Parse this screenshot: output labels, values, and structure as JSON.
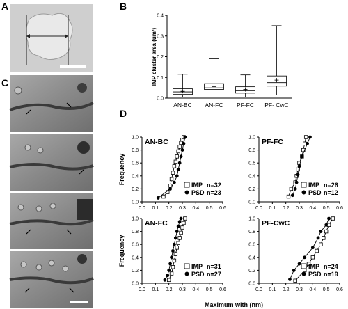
{
  "panels": {
    "A": {
      "letter": "A"
    },
    "B": {
      "letter": "B"
    },
    "C": {
      "letter": "C"
    },
    "D": {
      "letter": "D"
    }
  },
  "chart_data": [
    {
      "type": "box",
      "panel": "B",
      "ylabel": "IMP cluster area (um²)",
      "ylim": [
        0,
        0.4
      ],
      "yticks": [
        0.0,
        0.1,
        0.2,
        0.3,
        0.4
      ],
      "categories": [
        "AN-BC",
        "AN-FC",
        "PF-FC",
        "PF- CwC"
      ],
      "boxes": [
        {
          "min": 0.005,
          "q1": 0.018,
          "median": 0.03,
          "q3": 0.045,
          "max": 0.115,
          "mean": 0.033
        },
        {
          "min": 0.005,
          "q1": 0.042,
          "median": 0.05,
          "q3": 0.07,
          "max": 0.19,
          "mean": 0.055
        },
        {
          "min": 0.005,
          "q1": 0.024,
          "median": 0.036,
          "q3": 0.055,
          "max": 0.112,
          "mean": 0.042
        },
        {
          "min": 0.015,
          "q1": 0.058,
          "median": 0.075,
          "q3": 0.107,
          "max": 0.35,
          "mean": 0.087
        }
      ]
    },
    {
      "type": "line",
      "panel": "D",
      "xlabel": "Maximum with (nm)",
      "ylabel": "Frequency",
      "xlim": [
        0,
        0.6
      ],
      "ylim": [
        0,
        1.0
      ],
      "xticks": [
        "0.0",
        "0.1",
        "0.2",
        "0.3",
        "0.4",
        "0.5",
        "0.6"
      ],
      "yticks": [
        "0.0",
        "0.2",
        "0.4",
        "0.6",
        "0.8",
        "1.0"
      ],
      "subplots": [
        {
          "title": "AN-BC",
          "series": [
            {
              "name": "IMP",
              "n_label": "n=32",
              "marker": "open-square",
              "x": [
                0.16,
                0.19,
                0.21,
                0.22,
                0.23,
                0.24,
                0.25,
                0.26,
                0.27,
                0.28,
                0.29,
                0.3,
                0.31
              ],
              "y": [
                0.08,
                0.15,
                0.25,
                0.35,
                0.45,
                0.55,
                0.62,
                0.7,
                0.78,
                0.85,
                0.91,
                0.96,
                1.0
              ]
            },
            {
              "name": "PSD",
              "n_label": "n=23",
              "marker": "filled-circle",
              "x": [
                0.12,
                0.21,
                0.24,
                0.26,
                0.27,
                0.28,
                0.29,
                0.3,
                0.31,
                0.32
              ],
              "y": [
                0.06,
                0.2,
                0.3,
                0.4,
                0.5,
                0.6,
                0.7,
                0.8,
                0.9,
                1.0
              ]
            }
          ]
        },
        {
          "title": "PF-FC",
          "series": [
            {
              "name": "IMP",
              "n_label": "n=26",
              "marker": "open-square",
              "x": [
                0.22,
                0.24,
                0.27,
                0.28,
                0.29,
                0.3,
                0.32,
                0.33,
                0.34,
                0.35
              ],
              "y": [
                0.08,
                0.2,
                0.3,
                0.4,
                0.5,
                0.6,
                0.7,
                0.8,
                0.9,
                1.0
              ]
            },
            {
              "name": "PSD",
              "n_label": "n=12",
              "marker": "filled-circle",
              "x": [
                0.25,
                0.27,
                0.28,
                0.29,
                0.3,
                0.32,
                0.36,
                0.38
              ],
              "y": [
                0.1,
                0.2,
                0.3,
                0.42,
                0.55,
                0.7,
                0.9,
                1.0
              ]
            }
          ]
        },
        {
          "title": "AN-FC",
          "series": [
            {
              "name": "IMP",
              "n_label": "n=31",
              "marker": "open-square",
              "x": [
                0.2,
                0.22,
                0.23,
                0.24,
                0.25,
                0.26,
                0.27,
                0.28,
                0.29,
                0.3,
                0.31,
                0.32
              ],
              "y": [
                0.05,
                0.15,
                0.25,
                0.35,
                0.45,
                0.55,
                0.62,
                0.7,
                0.78,
                0.86,
                0.93,
                1.0
              ]
            },
            {
              "name": "PSD",
              "n_label": "n=27",
              "marker": "filled-circle",
              "x": [
                0.17,
                0.19,
                0.2,
                0.21,
                0.22,
                0.23,
                0.24,
                0.25,
                0.26,
                0.27,
                0.28,
                0.29
              ],
              "y": [
                0.05,
                0.12,
                0.2,
                0.3,
                0.4,
                0.5,
                0.6,
                0.7,
                0.8,
                0.88,
                0.95,
                1.0
              ]
            }
          ]
        },
        {
          "title": "PF-CwC",
          "series": [
            {
              "name": "IMP",
              "n_label": "n=24",
              "marker": "open-square",
              "x": [
                0.27,
                0.34,
                0.37,
                0.4,
                0.43,
                0.46,
                0.48,
                0.5,
                0.52,
                0.55
              ],
              "y": [
                0.04,
                0.2,
                0.3,
                0.4,
                0.5,
                0.6,
                0.7,
                0.8,
                0.9,
                1.0
              ]
            },
            {
              "name": "PSD",
              "n_label": "n=19",
              "marker": "filled-circle",
              "x": [
                0.23,
                0.26,
                0.3,
                0.34,
                0.4,
                0.44,
                0.46,
                0.5,
                0.52
              ],
              "y": [
                0.06,
                0.2,
                0.3,
                0.4,
                0.55,
                0.7,
                0.8,
                0.9,
                1.0
              ]
            }
          ]
        }
      ]
    }
  ]
}
